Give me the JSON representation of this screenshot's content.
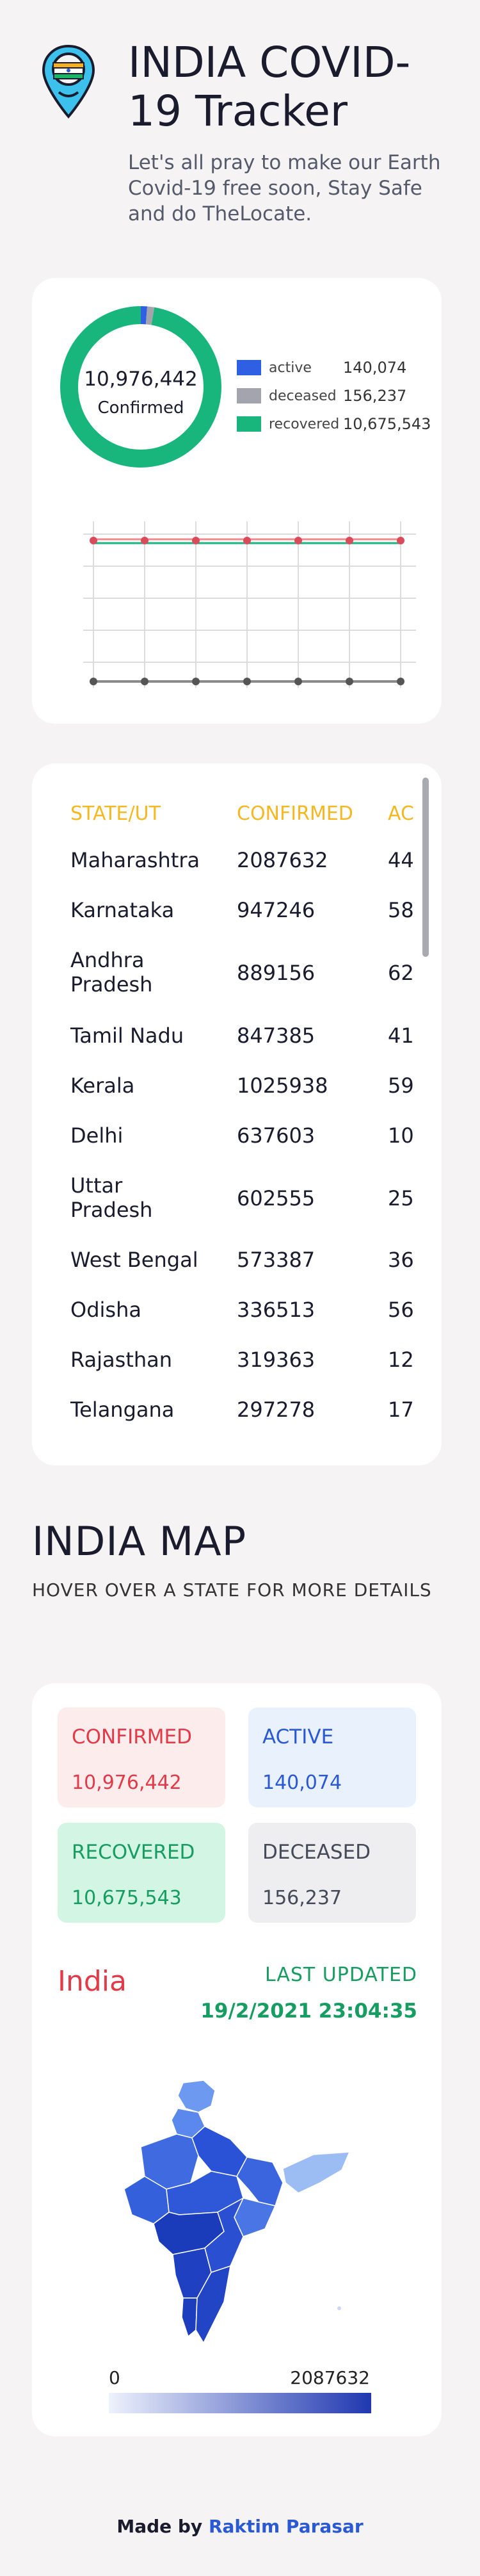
{
  "header": {
    "title": "INDIA COVID-19 Tracker",
    "subtitle": "Let's all pray to make our Earth Covid-19 free soon, Stay Safe and do TheLocate."
  },
  "donut": {
    "total": "10,976,442",
    "total_label": "Confirmed",
    "legend": [
      {
        "name": "active",
        "value": "140,074",
        "color": "#2f5fe3"
      },
      {
        "name": "deceased",
        "value": "156,237",
        "color": "#a4a4ae"
      },
      {
        "name": "recovered",
        "value": "10,675,543",
        "color": "#18b67d"
      }
    ]
  },
  "chart_data": {
    "type": "donut",
    "title": "",
    "categories": [
      "active",
      "deceased",
      "recovered"
    ],
    "values": [
      140074,
      156237,
      10675543
    ],
    "colors": [
      "#2f5fe3",
      "#a4a4ae",
      "#18b67d"
    ]
  },
  "table": {
    "headers": [
      "STATE/UT",
      "CONFIRMED",
      "AC"
    ],
    "rows": [
      {
        "state": "Maharashtra",
        "confirmed": "2087632",
        "active": "44"
      },
      {
        "state": "Karnataka",
        "confirmed": "947246",
        "active": "58"
      },
      {
        "state": "Andhra Pradesh",
        "confirmed": "889156",
        "active": "62"
      },
      {
        "state": "Tamil Nadu",
        "confirmed": "847385",
        "active": "41"
      },
      {
        "state": "Kerala",
        "confirmed": "1025938",
        "active": "59"
      },
      {
        "state": "Delhi",
        "confirmed": "637603",
        "active": "10"
      },
      {
        "state": "Uttar Pradesh",
        "confirmed": "602555",
        "active": "25"
      },
      {
        "state": "West Bengal",
        "confirmed": "573387",
        "active": "36"
      },
      {
        "state": "Odisha",
        "confirmed": "336513",
        "active": "56"
      },
      {
        "state": "Rajasthan",
        "confirmed": "319363",
        "active": "12"
      },
      {
        "state": "Telangana",
        "confirmed": "297278",
        "active": "17"
      }
    ]
  },
  "map_section": {
    "title": "INDIA MAP",
    "subtitle": "HOVER OVER A STATE FOR MORE DETAILS"
  },
  "stats": {
    "confirmed": {
      "label": "CONFIRMED",
      "value": "10,976,442"
    },
    "active": {
      "label": "ACTIVE",
      "value": "140,074"
    },
    "recovered": {
      "label": "RECOVERED",
      "value": "10,675,543"
    },
    "deceased": {
      "label": "DECEASED",
      "value": "156,237"
    }
  },
  "region": {
    "name": "India",
    "updated_label": "LAST UPDATED",
    "updated_value": "19/2/2021 23:04:35"
  },
  "scale": {
    "min": "0",
    "max": "2087632"
  },
  "footer": {
    "prefix": "Made by",
    "author": "Raktim Parasar"
  }
}
